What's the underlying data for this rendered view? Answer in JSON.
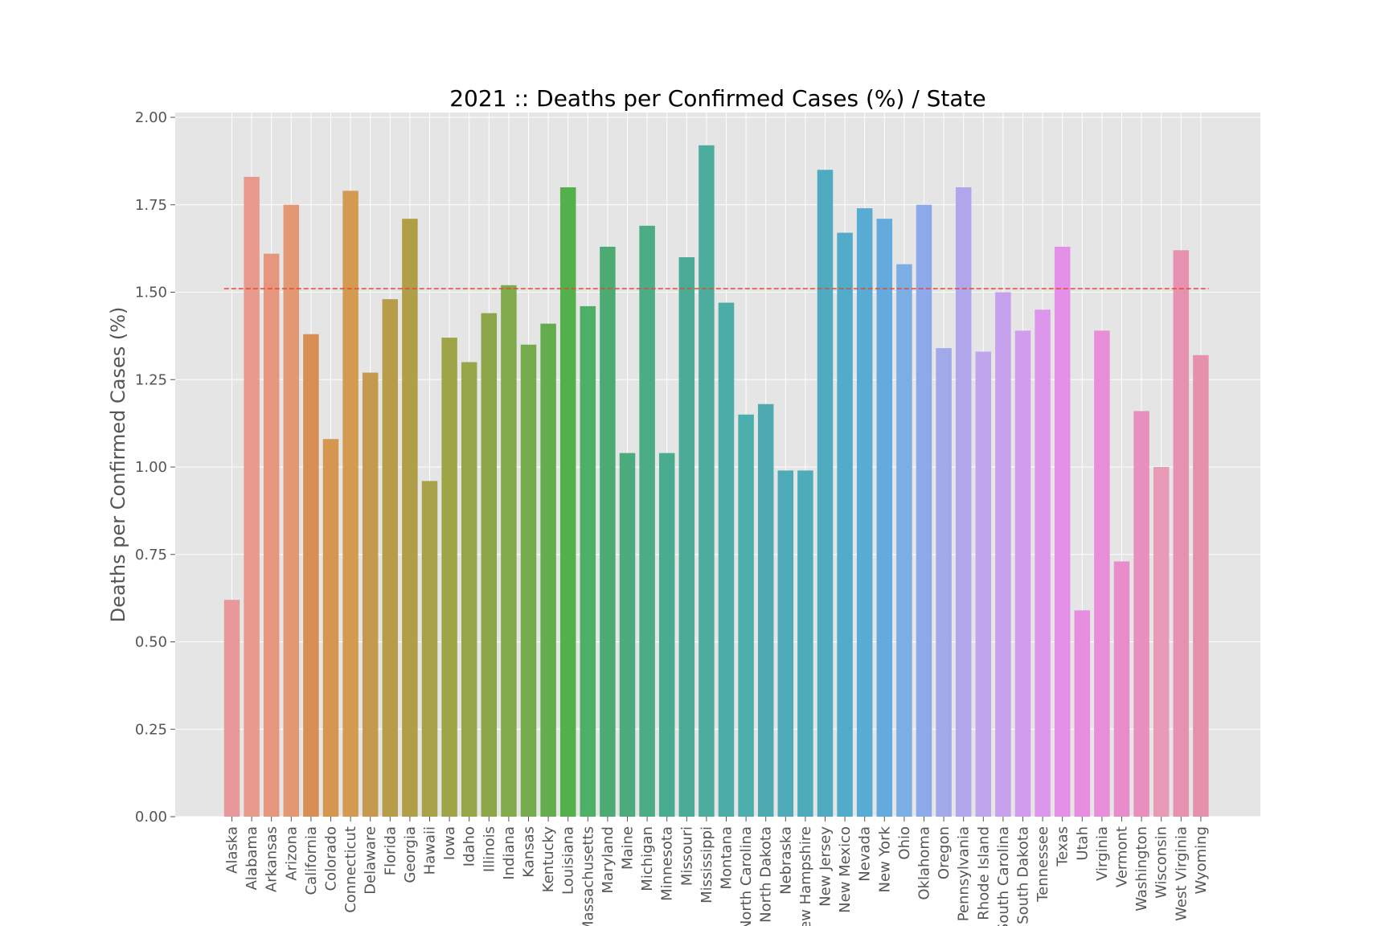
{
  "chart_data": {
    "type": "bar",
    "title": "2021 :: Deaths per Confirmed Cases (%) / State",
    "xlabel": "",
    "ylabel": "Deaths per Confirmed Cases (%)",
    "ylim": [
      0,
      2.0
    ],
    "yticks": [
      "0.00",
      "0.25",
      "0.50",
      "0.75",
      "1.00",
      "1.25",
      "1.50",
      "1.75",
      "2.00"
    ],
    "grid": true,
    "background": "#e5e5e5",
    "reference_line": {
      "value": 1.51,
      "color": "#e24a33",
      "style": "dashed"
    },
    "categories": [
      "Alaska",
      "Alabama",
      "Arkansas",
      "Arizona",
      "California",
      "Colorado",
      "Connecticut",
      "Delaware",
      "Florida",
      "Georgia",
      "Hawaii",
      "Iowa",
      "Idaho",
      "Illinois",
      "Indiana",
      "Kansas",
      "Kentucky",
      "Louisiana",
      "Massachusetts",
      "Maryland",
      "Maine",
      "Michigan",
      "Minnesota",
      "Missouri",
      "Mississippi",
      "Montana",
      "North Carolina",
      "North Dakota",
      "Nebraska",
      "New Hampshire",
      "New Jersey",
      "New Mexico",
      "Nevada",
      "New York",
      "Ohio",
      "Oklahoma",
      "Oregon",
      "Pennsylvania",
      "Rhode Island",
      "South Carolina",
      "South Dakota",
      "Tennessee",
      "Texas",
      "Utah",
      "Virginia",
      "Vermont",
      "Washington",
      "Wisconsin",
      "West Virginia",
      "Wyoming"
    ],
    "values": [
      0.62,
      1.83,
      1.61,
      1.75,
      1.38,
      1.08,
      1.79,
      1.27,
      1.48,
      1.71,
      0.96,
      1.37,
      1.3,
      1.44,
      1.52,
      1.35,
      1.41,
      1.8,
      1.46,
      1.63,
      1.04,
      1.69,
      1.04,
      1.6,
      1.92,
      1.47,
      1.15,
      1.18,
      0.99,
      0.99,
      1.85,
      1.67,
      1.74,
      1.71,
      1.58,
      1.75,
      1.34,
      1.8,
      1.33,
      1.5,
      1.39,
      1.45,
      1.63,
      0.59,
      1.39,
      0.73,
      1.16,
      1.0,
      1.62,
      1.32
    ],
    "colors": [
      "#e8979b",
      "#e89b8c",
      "#e6967f",
      "#e39874",
      "#d88f56",
      "#d5974f",
      "#d39a52",
      "#c59a4f",
      "#b79d49",
      "#b09f48",
      "#a9a04a",
      "#9fa547",
      "#96a648",
      "#8ca548",
      "#81aa4a",
      "#73ab4d",
      "#64ad4f",
      "#53b04a",
      "#4eaf67",
      "#4bab72",
      "#4cab7c",
      "#4bac86",
      "#4aac8e",
      "#4aac97",
      "#4cad9f",
      "#4cada6",
      "#4cadad",
      "#4caab0",
      "#4daab6",
      "#4eabba",
      "#4fabc0",
      "#51abca",
      "#58acd4",
      "#62abdc",
      "#7aaee4",
      "#8da9ea",
      "#a2a9ea",
      "#b1a6ec",
      "#bea5ec",
      "#c6a0ec",
      "#d19ced",
      "#dc97ec",
      "#e48fe8",
      "#e78de0",
      "#e88ed8",
      "#e88ccc",
      "#e88fbe",
      "#e89ab7",
      "#e791b1",
      "#e591ab"
    ]
  }
}
